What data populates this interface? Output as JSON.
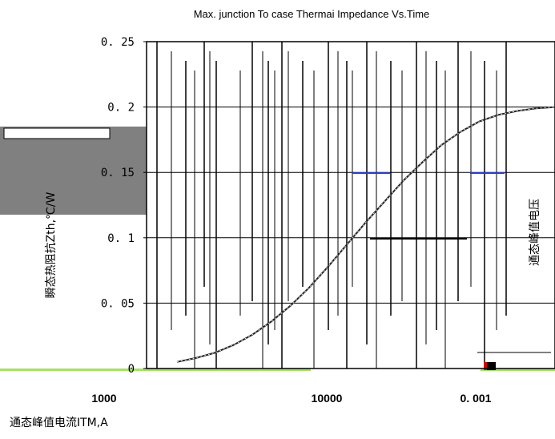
{
  "chart_data": {
    "type": "line",
    "title": "Max. junction To case Thermai Impedance Vs.Time",
    "ylabel": "瞬态热阻抗Zth,℃/W",
    "xlabel": "通态峰值电流ITM,A",
    "right_label": "通态峰值电压",
    "ylim": [
      0,
      0.25
    ],
    "yticks": [
      "0. 25",
      "0. 2",
      "0. 15",
      "0. 1",
      "0. 05",
      "0"
    ],
    "ytick_values": [
      0.25,
      0.2,
      0.15,
      0.1,
      0.05,
      0
    ],
    "xticks": [
      "1000",
      "10000",
      "0. 001"
    ],
    "grid": true,
    "series": [
      {
        "x": [
          0.0,
          0.05,
          0.1,
          0.15,
          0.2,
          0.25,
          0.3,
          0.35,
          0.4,
          0.45,
          0.5,
          0.55,
          0.6,
          0.65,
          0.7,
          0.75,
          0.8,
          0.85,
          0.9,
          0.95,
          1.0
        ],
        "values": [
          0.005,
          0.008,
          0.012,
          0.018,
          0.026,
          0.036,
          0.048,
          0.062,
          0.078,
          0.095,
          0.112,
          0.128,
          0.144,
          0.158,
          0.171,
          0.181,
          0.189,
          0.194,
          0.197,
          0.199,
          0.2
        ],
        "color": "#222222"
      }
    ]
  }
}
